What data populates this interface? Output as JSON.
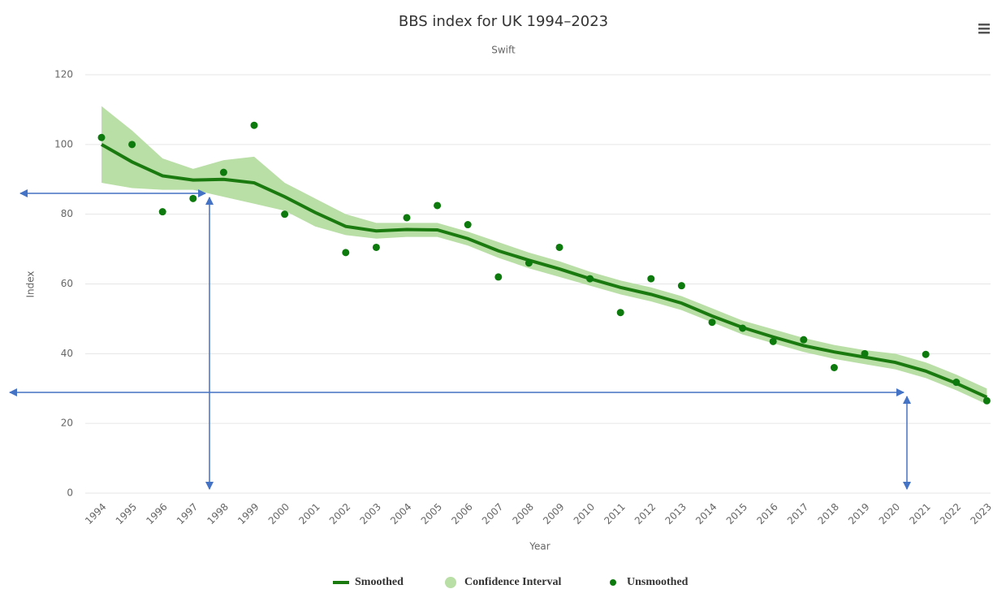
{
  "chart_data": {
    "type": "line",
    "title": "BBS index for UK 1994–2023",
    "subtitle": "Swift",
    "x_label": "Year",
    "y_label": "Index",
    "categories": [
      "1994",
      "1995",
      "1996",
      "1997",
      "1998",
      "1999",
      "2000",
      "2001",
      "2002",
      "2003",
      "2004",
      "2005",
      "2006",
      "2007",
      "2008",
      "2009",
      "2010",
      "2011",
      "2012",
      "2013",
      "2014",
      "2015",
      "2016",
      "2017",
      "2018",
      "2019",
      "2020",
      "2021",
      "2022",
      "2023"
    ],
    "ylim": [
      0,
      120
    ],
    "yticks": [
      0,
      20,
      40,
      60,
      80,
      100,
      120
    ],
    "grid": true,
    "series": [
      {
        "name": "Smoothed",
        "color": "#1a7a10",
        "values": [
          100,
          95,
          91,
          89.8,
          90,
          89,
          85,
          80.5,
          76.5,
          75.2,
          75.6,
          75.5,
          73,
          69.5,
          66.8,
          64.3,
          61.5,
          59,
          57,
          54.5,
          50.8,
          47.5,
          44.8,
          42.3,
          40.5,
          39,
          37.5,
          35,
          31.5,
          27.5
        ]
      },
      {
        "name": "Confidence Interval",
        "color": "#b9dea6",
        "low": [
          89,
          87.5,
          87,
          87,
          85,
          83,
          81,
          76.5,
          74,
          73,
          73.5,
          73.5,
          71,
          67.5,
          64.5,
          62,
          59.5,
          57,
          55,
          52.5,
          49,
          45.5,
          43,
          40.5,
          38.5,
          37,
          35.5,
          33,
          29.5,
          25.5
        ],
        "high": [
          111,
          104,
          96,
          93,
          95.5,
          96.5,
          89,
          84.5,
          80,
          77.5,
          77.5,
          77.5,
          75,
          72,
          69,
          66.5,
          63.5,
          61,
          59,
          56.5,
          53,
          49.5,
          47,
          44.5,
          42.5,
          41,
          40,
          37.5,
          34,
          30
        ]
      },
      {
        "name": "Unsmoothed",
        "color": "#0d7a0d",
        "values": [
          102,
          100,
          80.7,
          84.5,
          92,
          105.5,
          80,
          null,
          69,
          70.5,
          79,
          82.5,
          77,
          62,
          66,
          70.5,
          61.5,
          51.8,
          61.5,
          59.5,
          49,
          47.3,
          43.5,
          44,
          36,
          40,
          null,
          39.8,
          31.8,
          26.5
        ]
      }
    ]
  }
}
